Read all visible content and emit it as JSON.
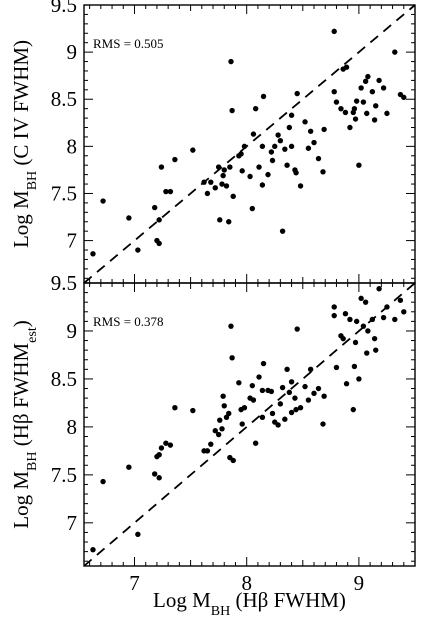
{
  "chart_data": [
    {
      "type": "scatter",
      "panel": "top",
      "ylabel": {
        "main": "Log M",
        "sub": "BH",
        "rest": " (C IV FWHM)"
      },
      "annotation": "RMS = 0.505",
      "xlim": [
        6.55,
        9.5
      ],
      "ylim": [
        6.55,
        9.5
      ],
      "yticks": [
        "7",
        "7.5",
        "8",
        "8.5",
        "9",
        "9.5"
      ],
      "reference_line": "y = x (dashed)",
      "points": [
        [
          6.63,
          6.86
        ],
        [
          6.72,
          7.42
        ],
        [
          6.95,
          7.24
        ],
        [
          7.03,
          6.9
        ],
        [
          7.18,
          7.35
        ],
        [
          7.2,
          7.0
        ],
        [
          7.22,
          6.97
        ],
        [
          7.22,
          7.22
        ],
        [
          7.24,
          7.78
        ],
        [
          7.28,
          7.52
        ],
        [
          7.32,
          7.52
        ],
        [
          7.36,
          7.86
        ],
        [
          7.52,
          7.96
        ],
        [
          7.62,
          7.62
        ],
        [
          7.65,
          7.5
        ],
        [
          7.68,
          7.62
        ],
        [
          7.72,
          7.56
        ],
        [
          7.75,
          7.78
        ],
        [
          7.76,
          7.22
        ],
        [
          7.78,
          7.6
        ],
        [
          7.79,
          7.69
        ],
        [
          7.8,
          7.75
        ],
        [
          7.82,
          7.58
        ],
        [
          7.84,
          7.2
        ],
        [
          7.85,
          7.78
        ],
        [
          7.86,
          8.9
        ],
        [
          7.87,
          8.38
        ],
        [
          7.88,
          7.47
        ],
        [
          7.93,
          7.9
        ],
        [
          7.95,
          7.92
        ],
        [
          7.96,
          7.74
        ],
        [
          7.98,
          8.0
        ],
        [
          8.03,
          7.68
        ],
        [
          8.05,
          7.34
        ],
        [
          8.06,
          8.13
        ],
        [
          8.08,
          8.4
        ],
        [
          8.11,
          7.78
        ],
        [
          8.14,
          7.59
        ],
        [
          8.14,
          8.0
        ],
        [
          8.15,
          8.53
        ],
        [
          8.19,
          7.7
        ],
        [
          8.22,
          7.94
        ],
        [
          8.23,
          7.85
        ],
        [
          8.25,
          8.0
        ],
        [
          8.28,
          8.12
        ],
        [
          8.3,
          8.06
        ],
        [
          8.32,
          7.1
        ],
        [
          8.34,
          7.97
        ],
        [
          8.36,
          7.8
        ],
        [
          8.38,
          8.2
        ],
        [
          8.4,
          8.33
        ],
        [
          8.4,
          8.0
        ],
        [
          8.43,
          7.75
        ],
        [
          8.44,
          7.72
        ],
        [
          8.45,
          8.56
        ],
        [
          8.48,
          7.58
        ],
        [
          8.52,
          8.26
        ],
        [
          8.55,
          7.98
        ],
        [
          8.57,
          8.16
        ],
        [
          8.6,
          8.04
        ],
        [
          8.64,
          7.87
        ],
        [
          8.68,
          7.73
        ],
        [
          8.69,
          8.18
        ],
        [
          8.78,
          9.22
        ],
        [
          8.78,
          8.58
        ],
        [
          8.8,
          8.47
        ],
        [
          8.84,
          8.4
        ],
        [
          8.86,
          8.82
        ],
        [
          8.88,
          8.36
        ],
        [
          8.89,
          8.84
        ],
        [
          8.92,
          8.2
        ],
        [
          8.95,
          8.36
        ],
        [
          8.96,
          8.4
        ],
        [
          8.97,
          8.29
        ],
        [
          8.98,
          8.48
        ],
        [
          9.0,
          7.8
        ],
        [
          9.02,
          8.62
        ],
        [
          9.04,
          8.47
        ],
        [
          9.06,
          8.69
        ],
        [
          9.07,
          8.35
        ],
        [
          9.08,
          8.74
        ],
        [
          9.12,
          8.58
        ],
        [
          9.14,
          8.28
        ],
        [
          9.15,
          8.43
        ],
        [
          9.18,
          8.7
        ],
        [
          9.22,
          8.62
        ],
        [
          9.25,
          8.35
        ],
        [
          9.32,
          9.0
        ],
        [
          9.37,
          8.55
        ],
        [
          9.4,
          8.52
        ]
      ]
    },
    {
      "type": "scatter",
      "panel": "bottom",
      "xlabel": {
        "main": "Log M",
        "sub": "BH",
        "rest": " (Hβ FWHM)"
      },
      "ylabel": {
        "main": "Log M",
        "sub": "BH",
        "mid": " (Hβ FWHM",
        "sub2": "est",
        "rest": ")"
      },
      "annotation": "RMS = 0.378",
      "xlim": [
        6.55,
        9.5
      ],
      "ylim": [
        6.55,
        9.5
      ],
      "xticks": [
        "7",
        "8",
        "9"
      ],
      "yticks": [
        "7",
        "7.5",
        "8",
        "8.5",
        "9",
        "9.5"
      ],
      "reference_line": "y = x (dashed)",
      "points": [
        [
          6.63,
          6.72
        ],
        [
          6.72,
          7.43
        ],
        [
          6.95,
          7.58
        ],
        [
          7.03,
          6.88
        ],
        [
          7.18,
          7.51
        ],
        [
          7.2,
          7.69
        ],
        [
          7.22,
          7.47
        ],
        [
          7.22,
          7.71
        ],
        [
          7.24,
          7.78
        ],
        [
          7.28,
          7.83
        ],
        [
          7.32,
          7.81
        ],
        [
          7.36,
          8.2
        ],
        [
          7.52,
          8.17
        ],
        [
          7.62,
          7.75
        ],
        [
          7.65,
          7.75
        ],
        [
          7.68,
          7.82
        ],
        [
          7.72,
          7.96
        ],
        [
          7.75,
          7.92
        ],
        [
          7.76,
          8.07
        ],
        [
          7.78,
          7.98
        ],
        [
          7.79,
          8.32
        ],
        [
          7.8,
          8.22
        ],
        [
          7.82,
          8.1
        ],
        [
          7.84,
          8.14
        ],
        [
          7.85,
          7.68
        ],
        [
          7.86,
          9.05
        ],
        [
          7.87,
          8.72
        ],
        [
          7.88,
          7.65
        ],
        [
          7.93,
          8.46
        ],
        [
          7.95,
          8.18
        ],
        [
          7.96,
          8.03
        ],
        [
          7.98,
          8.2
        ],
        [
          8.03,
          8.3
        ],
        [
          8.05,
          8.43
        ],
        [
          8.06,
          8.28
        ],
        [
          8.08,
          7.83
        ],
        [
          8.11,
          8.52
        ],
        [
          8.14,
          8.1
        ],
        [
          8.14,
          8.38
        ],
        [
          8.15,
          8.66
        ],
        [
          8.19,
          8.38
        ],
        [
          8.22,
          8.37
        ],
        [
          8.23,
          8.14
        ],
        [
          8.25,
          8.05
        ],
        [
          8.28,
          8.02
        ],
        [
          8.3,
          8.24
        ],
        [
          8.32,
          8.41
        ],
        [
          8.34,
          8.08
        ],
        [
          8.36,
          8.6
        ],
        [
          8.38,
          8.36
        ],
        [
          8.4,
          8.47
        ],
        [
          8.4,
          8.15
        ],
        [
          8.43,
          8.3
        ],
        [
          8.44,
          8.18
        ],
        [
          8.45,
          9.02
        ],
        [
          8.48,
          8.2
        ],
        [
          8.52,
          8.42
        ],
        [
          8.55,
          8.28
        ],
        [
          8.57,
          8.6
        ],
        [
          8.6,
          8.35
        ],
        [
          8.64,
          8.4
        ],
        [
          8.68,
          8.03
        ],
        [
          8.69,
          8.32
        ],
        [
          8.78,
          9.25
        ],
        [
          8.78,
          9.16
        ],
        [
          8.8,
          8.62
        ],
        [
          8.84,
          8.95
        ],
        [
          8.86,
          8.92
        ],
        [
          8.88,
          9.18
        ],
        [
          8.89,
          8.45
        ],
        [
          8.92,
          9.12
        ],
        [
          8.95,
          8.18
        ],
        [
          8.96,
          8.63
        ],
        [
          8.97,
          8.88
        ],
        [
          8.98,
          9.1
        ],
        [
          9.0,
          8.5
        ],
        [
          9.02,
          9.34
        ],
        [
          9.04,
          9.05
        ],
        [
          9.06,
          9.3
        ],
        [
          9.07,
          8.77
        ],
        [
          9.08,
          9.0
        ],
        [
          9.12,
          9.12
        ],
        [
          9.14,
          8.92
        ],
        [
          9.15,
          8.8
        ],
        [
          9.18,
          9.44
        ],
        [
          9.22,
          9.14
        ],
        [
          9.25,
          9.25
        ],
        [
          9.32,
          9.12
        ],
        [
          9.37,
          9.32
        ],
        [
          9.4,
          9.2
        ]
      ]
    }
  ]
}
